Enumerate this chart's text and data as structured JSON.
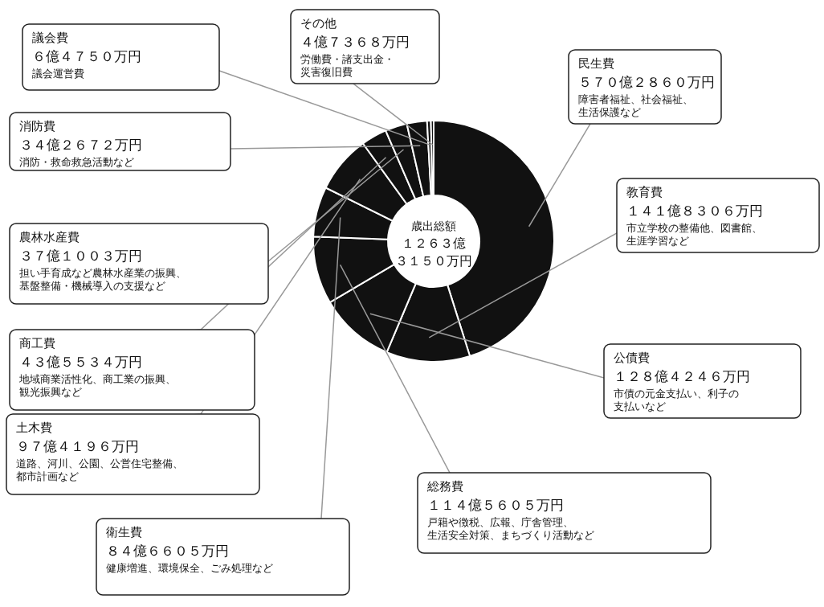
{
  "chart_data": {
    "type": "donut",
    "title": "歳出総額",
    "subtitle": "１２６３億３１５０万円",
    "categories": [
      "民生費",
      "教育費",
      "公債費",
      "総務費",
      "衛生費",
      "土木費",
      "商工費",
      "農林水産費",
      "消防費",
      "議会費",
      "その他"
    ],
    "values": [
      45.14,
      11.23,
      10.17,
      9.07,
      6.7,
      7.71,
      3.45,
      2.94,
      2.71,
      0.51,
      0.37
    ],
    "colors": [
      "#111111",
      "#111111",
      "#111111",
      "#111111",
      "#111111",
      "#111111",
      "#111111",
      "#111111",
      "#111111",
      "#111111",
      "#111111"
    ],
    "annotations": [
      {
        "text": "５７０億２８６０万円",
        "x": "民生費"
      },
      {
        "text": "１４１億８３０６万円",
        "x": "教育費"
      },
      {
        "text": "１２８億４２４６万円",
        "x": "公債費"
      },
      {
        "text": "１１４億５６０５万円",
        "x": "総務費"
      },
      {
        "text": "８４億６６０５万円",
        "x": "衛生費"
      },
      {
        "text": "９７億４１９６万円",
        "x": "土木費"
      },
      {
        "text": "４３億５５３４万円",
        "x": "商工費"
      },
      {
        "text": "３７億１００３万円",
        "x": "農林水産費"
      },
      {
        "text": "３４億２６７２万円",
        "x": "消防費"
      },
      {
        "text": "６億４７５０万円",
        "x": "議会費"
      },
      {
        "text": "４億７３６８万円",
        "x": "その他"
      },
      {
        "text": "障害者福祉、社会福祉、生活保護など",
        "x": "民生費"
      },
      {
        "text": "市立学校の整備他、図書館、生涯学習など",
        "x": "教育費"
      },
      {
        "text": "市債の元金支払い、利子の支払いなど",
        "x": "公債費"
      },
      {
        "text": "戸籍や徴税、広報、庁舎管理、生活安全対策、まちづくり活動など",
        "x": "総務費"
      },
      {
        "text": "健康増進、環境保全、ごみ処理など",
        "x": "衛生費"
      },
      {
        "text": "道路、河川、公園、公営住宅整備、都市計画など",
        "x": "土木費"
      },
      {
        "text": "地域商業活性化、商工業の振興、観光振興など",
        "x": "商工費"
      },
      {
        "text": "担い手育成など農林水産業の振興、基盤整備・機械導入の支援など",
        "x": "農林水産費"
      },
      {
        "text": "消防・救命救急活動など",
        "x": "消防費"
      },
      {
        "text": "議会運営費",
        "x": "議会費"
      },
      {
        "text": "労働費・諸支出金・災害復旧費",
        "x": "その他"
      }
    ]
  }
}
